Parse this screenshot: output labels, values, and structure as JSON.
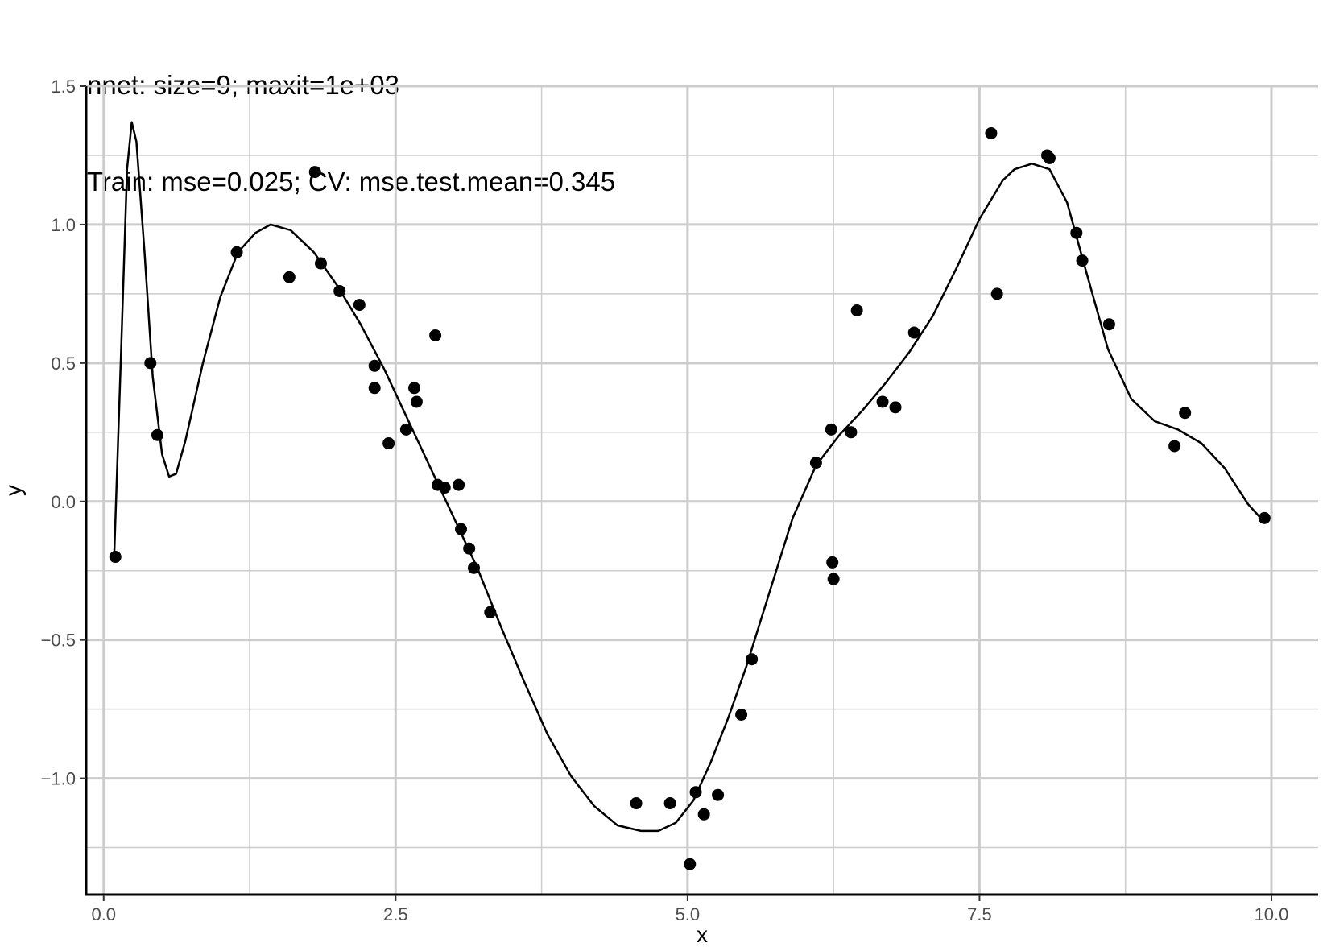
{
  "chart_data": {
    "type": "scatter",
    "title": "nnet: size=9; maxit=1e+03",
    "subtitle": "Train: mse=0.025; CV: mse.test.mean=0.345",
    "xlabel": "x",
    "ylabel": "y",
    "xlim": [
      -0.15,
      10.4
    ],
    "ylim": [
      -1.42,
      1.5
    ],
    "x_ticks": [
      0.0,
      2.5,
      5.0,
      7.5,
      10.0
    ],
    "x_tick_labels": [
      "0.0",
      "2.5",
      "5.0",
      "7.5",
      "10.0"
    ],
    "y_ticks": [
      -1.0,
      -0.5,
      0.0,
      0.5,
      1.0,
      1.5
    ],
    "y_tick_labels": [
      "−1.0",
      "−0.5",
      "0.0",
      "0.5",
      "1.0",
      "1.5"
    ],
    "x_minor_ticks": [
      1.25,
      3.75,
      6.25,
      8.75
    ],
    "y_minor_ticks": [
      -1.25,
      -0.75,
      -0.25,
      0.25,
      0.75,
      1.25
    ],
    "grid": true,
    "colors": {
      "points": "#000000",
      "line": "#000000",
      "grid": "#cccccc",
      "axis": "#000000"
    },
    "points": [
      [
        0.1,
        -0.2
      ],
      [
        0.4,
        0.5
      ],
      [
        0.46,
        0.24
      ],
      [
        1.14,
        0.9
      ],
      [
        1.59,
        0.81
      ],
      [
        1.81,
        1.19
      ],
      [
        1.86,
        0.86
      ],
      [
        2.02,
        0.76
      ],
      [
        2.19,
        0.71
      ],
      [
        2.32,
        0.49
      ],
      [
        2.32,
        0.41
      ],
      [
        2.44,
        0.21
      ],
      [
        2.59,
        0.26
      ],
      [
        2.66,
        0.41
      ],
      [
        2.68,
        0.36
      ],
      [
        2.84,
        0.6
      ],
      [
        2.86,
        0.06
      ],
      [
        2.92,
        0.05
      ],
      [
        3.04,
        0.06
      ],
      [
        3.06,
        -0.1
      ],
      [
        3.13,
        -0.17
      ],
      [
        3.17,
        -0.24
      ],
      [
        3.31,
        -0.4
      ],
      [
        4.56,
        -1.09
      ],
      [
        4.85,
        -1.09
      ],
      [
        5.02,
        -1.31
      ],
      [
        5.07,
        -1.05
      ],
      [
        5.14,
        -1.13
      ],
      [
        5.26,
        -1.06
      ],
      [
        5.46,
        -0.77
      ],
      [
        5.55,
        -0.57
      ],
      [
        6.1,
        0.14
      ],
      [
        6.23,
        0.26
      ],
      [
        6.24,
        -0.22
      ],
      [
        6.25,
        -0.28
      ],
      [
        6.4,
        0.25
      ],
      [
        6.45,
        0.69
      ],
      [
        6.67,
        0.36
      ],
      [
        6.78,
        0.34
      ],
      [
        6.94,
        0.61
      ],
      [
        7.6,
        1.33
      ],
      [
        7.65,
        0.75
      ],
      [
        8.08,
        1.25
      ],
      [
        8.1,
        1.24
      ],
      [
        8.33,
        0.97
      ],
      [
        8.38,
        0.87
      ],
      [
        8.61,
        0.64
      ],
      [
        9.17,
        0.2
      ],
      [
        9.26,
        0.32
      ],
      [
        9.94,
        -0.06
      ]
    ],
    "fitted_line": [
      [
        0.09,
        -0.2
      ],
      [
        0.15,
        0.55
      ],
      [
        0.2,
        1.2
      ],
      [
        0.24,
        1.37
      ],
      [
        0.28,
        1.3
      ],
      [
        0.35,
        0.9
      ],
      [
        0.42,
        0.45
      ],
      [
        0.5,
        0.17
      ],
      [
        0.56,
        0.09
      ],
      [
        0.62,
        0.1
      ],
      [
        0.7,
        0.22
      ],
      [
        0.85,
        0.5
      ],
      [
        1.0,
        0.74
      ],
      [
        1.15,
        0.9
      ],
      [
        1.3,
        0.97
      ],
      [
        1.43,
        1.0
      ],
      [
        1.6,
        0.98
      ],
      [
        1.8,
        0.9
      ],
      [
        2.0,
        0.78
      ],
      [
        2.2,
        0.64
      ],
      [
        2.4,
        0.48
      ],
      [
        2.6,
        0.3
      ],
      [
        2.8,
        0.12
      ],
      [
        3.0,
        -0.06
      ],
      [
        3.2,
        -0.24
      ],
      [
        3.4,
        -0.45
      ],
      [
        3.6,
        -0.65
      ],
      [
        3.8,
        -0.84
      ],
      [
        4.0,
        -0.99
      ],
      [
        4.2,
        -1.1
      ],
      [
        4.4,
        -1.17
      ],
      [
        4.6,
        -1.19
      ],
      [
        4.75,
        -1.19
      ],
      [
        4.9,
        -1.16
      ],
      [
        5.05,
        -1.08
      ],
      [
        5.2,
        -0.94
      ],
      [
        5.35,
        -0.78
      ],
      [
        5.5,
        -0.6
      ],
      [
        5.7,
        -0.33
      ],
      [
        5.9,
        -0.06
      ],
      [
        6.1,
        0.13
      ],
      [
        6.3,
        0.24
      ],
      [
        6.5,
        0.33
      ],
      [
        6.7,
        0.43
      ],
      [
        6.9,
        0.54
      ],
      [
        7.1,
        0.67
      ],
      [
        7.3,
        0.84
      ],
      [
        7.5,
        1.02
      ],
      [
        7.7,
        1.16
      ],
      [
        7.8,
        1.2
      ],
      [
        7.95,
        1.22
      ],
      [
        8.1,
        1.2
      ],
      [
        8.25,
        1.08
      ],
      [
        8.4,
        0.85
      ],
      [
        8.6,
        0.55
      ],
      [
        8.8,
        0.37
      ],
      [
        9.0,
        0.29
      ],
      [
        9.2,
        0.26
      ],
      [
        9.4,
        0.21
      ],
      [
        9.6,
        0.12
      ],
      [
        9.8,
        -0.01
      ],
      [
        9.93,
        -0.07
      ]
    ]
  }
}
